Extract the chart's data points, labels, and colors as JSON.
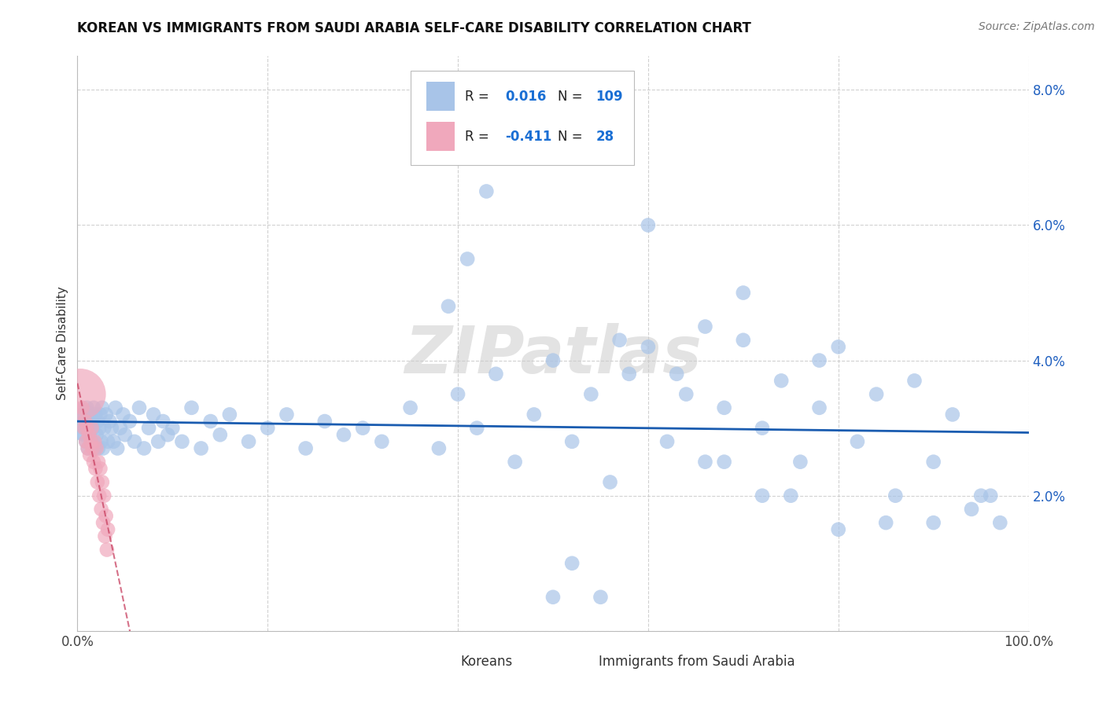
{
  "title": "KOREAN VS IMMIGRANTS FROM SAUDI ARABIA SELF-CARE DISABILITY CORRELATION CHART",
  "source": "Source: ZipAtlas.com",
  "ylabel": "Self-Care Disability",
  "xlim": [
    0,
    1.0
  ],
  "ylim": [
    0,
    0.085
  ],
  "yticks": [
    0.0,
    0.02,
    0.04,
    0.06,
    0.08
  ],
  "ytick_labels": [
    "",
    "2.0%",
    "4.0%",
    "6.0%",
    "8.0%"
  ],
  "xticks": [
    0.0,
    0.2,
    0.4,
    0.6,
    0.8,
    1.0
  ],
  "xtick_labels": [
    "0.0%",
    "",
    "",
    "",
    "",
    "100.0%"
  ],
  "korean_color": "#a8c4e8",
  "saudi_color": "#f0a8bc",
  "trend_korean_color": "#1a5cb0",
  "trend_saudi_color": "#c84060",
  "legend_r_color": "#1a6fd4",
  "watermark": "ZIPatlas",
  "korean_x": [
    0.003,
    0.005,
    0.007,
    0.008,
    0.009,
    0.01,
    0.011,
    0.012,
    0.013,
    0.014,
    0.015,
    0.016,
    0.017,
    0.018,
    0.019,
    0.02,
    0.021,
    0.022,
    0.023,
    0.024,
    0.025,
    0.026,
    0.027,
    0.028,
    0.03,
    0.032,
    0.034,
    0.036,
    0.038,
    0.04,
    0.042,
    0.045,
    0.048,
    0.05,
    0.055,
    0.06,
    0.065,
    0.07,
    0.075,
    0.08,
    0.085,
    0.09,
    0.095,
    0.1,
    0.11,
    0.12,
    0.13,
    0.14,
    0.15,
    0.16,
    0.18,
    0.2,
    0.22,
    0.24,
    0.26,
    0.28,
    0.3,
    0.32,
    0.35,
    0.38,
    0.4,
    0.42,
    0.44,
    0.46,
    0.48,
    0.5,
    0.52,
    0.54,
    0.56,
    0.58,
    0.6,
    0.62,
    0.64,
    0.66,
    0.68,
    0.7,
    0.72,
    0.74,
    0.76,
    0.78,
    0.8,
    0.82,
    0.84,
    0.86,
    0.88,
    0.9,
    0.92,
    0.94,
    0.96,
    0.97,
    0.39,
    0.41,
    0.43,
    0.5,
    0.52,
    0.55,
    0.57,
    0.6,
    0.63,
    0.66,
    0.68,
    0.7,
    0.72,
    0.75,
    0.78,
    0.8,
    0.85,
    0.9,
    0.95
  ],
  "korean_y": [
    0.031,
    0.032,
    0.029,
    0.03,
    0.028,
    0.033,
    0.027,
    0.031,
    0.029,
    0.03,
    0.028,
    0.03,
    0.033,
    0.027,
    0.032,
    0.029,
    0.031,
    0.027,
    0.03,
    0.032,
    0.028,
    0.033,
    0.027,
    0.03,
    0.032,
    0.028,
    0.031,
    0.03,
    0.028,
    0.033,
    0.027,
    0.03,
    0.032,
    0.029,
    0.031,
    0.028,
    0.033,
    0.027,
    0.03,
    0.032,
    0.028,
    0.031,
    0.029,
    0.03,
    0.028,
    0.033,
    0.027,
    0.031,
    0.029,
    0.032,
    0.028,
    0.03,
    0.032,
    0.027,
    0.031,
    0.029,
    0.03,
    0.028,
    0.033,
    0.027,
    0.035,
    0.03,
    0.038,
    0.025,
    0.032,
    0.04,
    0.028,
    0.035,
    0.022,
    0.038,
    0.042,
    0.028,
    0.035,
    0.025,
    0.033,
    0.043,
    0.02,
    0.037,
    0.025,
    0.033,
    0.042,
    0.028,
    0.035,
    0.02,
    0.037,
    0.025,
    0.032,
    0.018,
    0.02,
    0.016,
    0.048,
    0.055,
    0.065,
    0.005,
    0.01,
    0.005,
    0.043,
    0.06,
    0.038,
    0.045,
    0.025,
    0.05,
    0.03,
    0.02,
    0.04,
    0.015,
    0.016,
    0.016,
    0.02
  ],
  "korean_sizes_base": 180,
  "korean_large_idx": 0,
  "korean_large_size": 1200,
  "saudi_x": [
    0.003,
    0.005,
    0.007,
    0.008,
    0.009,
    0.01,
    0.011,
    0.012,
    0.013,
    0.014,
    0.015,
    0.016,
    0.017,
    0.018,
    0.019,
    0.02,
    0.021,
    0.022,
    0.023,
    0.024,
    0.025,
    0.026,
    0.027,
    0.028,
    0.029,
    0.03,
    0.031,
    0.032
  ],
  "saudi_y": [
    0.035,
    0.033,
    0.03,
    0.031,
    0.028,
    0.03,
    0.027,
    0.029,
    0.026,
    0.028,
    0.03,
    0.027,
    0.025,
    0.028,
    0.024,
    0.027,
    0.022,
    0.025,
    0.02,
    0.024,
    0.018,
    0.022,
    0.016,
    0.02,
    0.014,
    0.017,
    0.012,
    0.015
  ],
  "saudi_sizes_base": 180,
  "saudi_large_size": 2200
}
